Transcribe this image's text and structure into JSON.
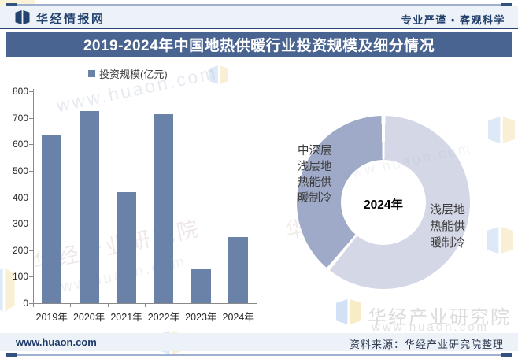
{
  "header": {
    "logo_text": "华经情报网",
    "slogan": "专业严谨 • 客观科学"
  },
  "title": "2019-2024年中国地热供暖行业投资规模及细分情况",
  "chart_data": [
    {
      "type": "bar",
      "name": "投资规模",
      "legend_label": "投资规模(亿元)",
      "categories": [
        "2019年",
        "2020年",
        "2021年",
        "2022年",
        "2023年",
        "2024年"
      ],
      "values": [
        636,
        726,
        420,
        713,
        130,
        250
      ],
      "unit": "亿元",
      "ylim": [
        0,
        800
      ],
      "ytick_step": 100,
      "bar_color": "#6A82A8",
      "grid": false,
      "legend_position": "top-left"
    },
    {
      "type": "pie",
      "subtype": "donut",
      "center_label": "2024年",
      "start_angle_deg": 0,
      "slices": [
        {
          "label": "浅层地热能供暖制冷",
          "label_lines": [
            "浅层地",
            "热能供",
            "暖制冷"
          ],
          "label_side": "right",
          "value_pct": 61,
          "color": "#D4D8E6"
        },
        {
          "label": "中深层浅层地热能供暖制冷",
          "label_lines": [
            "中深层",
            "浅层地",
            "热能供",
            "暖制冷"
          ],
          "label_side": "left",
          "value_pct": 39,
          "color": "#9EAAC7"
        }
      ]
    }
  ],
  "watermarks": {
    "brand": "华经产业研究院",
    "site": "www.huaon.com"
  },
  "footer": {
    "site": "www.huaon.com",
    "source": "资料来源：华经产业研究院整理"
  },
  "colors": {
    "accent_navy": "#24426E",
    "title_bar_bg": "#4A6491",
    "bar_fill": "#6A82A8",
    "donut_light": "#D4D8E6",
    "donut_dark": "#9EAAC7",
    "panel_bg": "#EDF1F8"
  }
}
